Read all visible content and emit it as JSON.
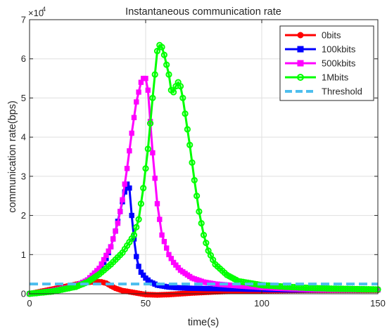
{
  "chart_data": {
    "type": "line",
    "title": "Instantaneous communication rate",
    "xlabel": "time(s)",
    "ylabel": "communication rate(bps)",
    "y_exponent_label": "×10",
    "y_exponent_power": "4",
    "xlim": [
      0,
      150
    ],
    "ylim": [
      0,
      70000
    ],
    "x_ticks": [
      0,
      50,
      100,
      150
    ],
    "x_tick_labels": [
      "0",
      "50",
      "100",
      "150"
    ],
    "y_ticks": [
      0,
      10000,
      20000,
      30000,
      40000,
      50000,
      60000,
      70000
    ],
    "y_tick_labels": [
      "0",
      "1",
      "2",
      "3",
      "4",
      "5",
      "6",
      "7"
    ],
    "grid": true,
    "legend_position": "top-right",
    "series": [
      {
        "name": "0bits",
        "color": "#ff0000",
        "marker": "circle-filled",
        "x": [
          0,
          5,
          10,
          15,
          20,
          25,
          28,
          31,
          33,
          35,
          37,
          40,
          45,
          50,
          55,
          60,
          70,
          80,
          90,
          100,
          110,
          120,
          130,
          140,
          150
        ],
        "y": [
          0,
          600,
          1200,
          1800,
          2400,
          2900,
          3100,
          3000,
          2700,
          2000,
          1400,
          800,
          300,
          -200,
          -300,
          -200,
          200,
          500,
          700,
          800,
          850,
          900,
          900,
          900,
          900
        ]
      },
      {
        "name": "100kbits",
        "color": "#0000ff",
        "marker": "square-filled",
        "x": [
          0,
          10,
          20,
          25,
          30,
          33,
          35,
          37,
          39,
          41,
          42,
          43,
          44,
          45,
          46,
          47,
          48,
          50,
          52,
          55,
          60,
          65,
          70,
          80,
          90,
          100,
          110,
          120,
          130,
          140,
          150
        ],
        "y": [
          0,
          800,
          2000,
          3500,
          6000,
          9000,
          12000,
          16000,
          21000,
          26000,
          28000,
          27000,
          20000,
          14000,
          9500,
          7000,
          5500,
          4000,
          3000,
          2200,
          1700,
          1500,
          1400,
          1300,
          1200,
          1100,
          1000,
          1000,
          1000,
          1000,
          1000
        ]
      },
      {
        "name": "500kbits",
        "color": "#ff00ff",
        "marker": "square-filled",
        "x": [
          0,
          10,
          20,
          25,
          30,
          35,
          38,
          40,
          42,
          44,
          46,
          48,
          49,
          50,
          51,
          52,
          53,
          55,
          57,
          60,
          62,
          65,
          70,
          75,
          80,
          90,
          100,
          110,
          120,
          130,
          140,
          150
        ],
        "y": [
          0,
          800,
          2000,
          3500,
          6500,
          12000,
          18000,
          24000,
          32000,
          41000,
          49000,
          54000,
          55000,
          55000,
          52000,
          44000,
          36000,
          23000,
          15000,
          10000,
          8000,
          6000,
          4000,
          3000,
          2500,
          2000,
          1600,
          1300,
          1100,
          1000,
          1000,
          1000
        ]
      },
      {
        "name": "1Mbits",
        "color": "#00ff00",
        "marker": "circle-open",
        "x": [
          0,
          10,
          20,
          25,
          30,
          35,
          40,
          45,
          47,
          49,
          51,
          53,
          55,
          56,
          57,
          58,
          60,
          61,
          62,
          63,
          64,
          65,
          66,
          67,
          69,
          71,
          73,
          75,
          77,
          80,
          85,
          90,
          100,
          110,
          120,
          130,
          140,
          150
        ],
        "y": [
          0,
          600,
          1800,
          3000,
          5000,
          7500,
          10500,
          15000,
          19000,
          27000,
          37000,
          50000,
          62000,
          63500,
          63000,
          61000,
          56000,
          52000,
          51500,
          53000,
          54000,
          53000,
          50000,
          46000,
          38000,
          29000,
          21000,
          15000,
          11000,
          7500,
          4800,
          3200,
          2200,
          1800,
          1500,
          1300,
          1200,
          1100
        ]
      },
      {
        "name": "Threshold",
        "color": "#4dbeee",
        "marker": "none",
        "dashed": true,
        "x": [
          0,
          150
        ],
        "y": [
          2500,
          2500
        ]
      }
    ]
  }
}
